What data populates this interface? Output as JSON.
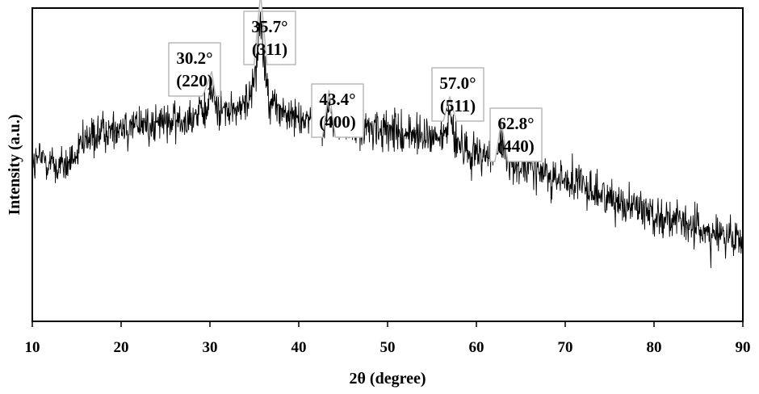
{
  "chart_data": {
    "type": "line",
    "xlabel": "2θ (degree)",
    "ylabel": "Intensity (a.u.)",
    "xlim": [
      10,
      90
    ],
    "ylim": [
      0,
      100
    ],
    "yticks_shown": false,
    "grid": false,
    "xticks": [
      "10",
      "20",
      "30",
      "40",
      "50",
      "60",
      "70",
      "80",
      "90"
    ],
    "series": [
      {
        "values_note_free": true,
        "x": [
          10,
          11,
          12,
          13,
          14,
          15,
          16,
          17,
          18,
          19,
          20,
          21,
          22,
          23,
          24,
          25,
          26,
          27,
          28,
          29,
          29.5,
          30.2,
          31,
          32,
          33,
          34,
          34.8,
          35.3,
          35.7,
          36.1,
          36.6,
          37.5,
          38.5,
          40,
          41.5,
          42.6,
          43.4,
          44.2,
          45.5,
          47,
          48.5,
          50,
          51.5,
          53,
          54.5,
          55.8,
          56.5,
          57.0,
          57.6,
          58.5,
          60,
          61.5,
          62.3,
          62.8,
          63.4,
          64.5,
          66,
          68,
          70,
          72,
          74,
          76,
          78,
          80,
          82,
          84,
          86,
          88,
          90
        ],
        "y": [
          50,
          52,
          51,
          49,
          50,
          53,
          57,
          59,
          60,
          61,
          62,
          62.5,
          62.8,
          63,
          63,
          63.5,
          64,
          64.5,
          65,
          66,
          67,
          73,
          68,
          67,
          67.5,
          69,
          74,
          85,
          98,
          83,
          72,
          68,
          66,
          65,
          64,
          63.5,
          67,
          62.5,
          62,
          61.5,
          61,
          60.5,
          60,
          59.5,
          59,
          58.5,
          60,
          65,
          58,
          55,
          54,
          53,
          54,
          57,
          52,
          50.5,
          49,
          47,
          45,
          43,
          40.5,
          38.5,
          36.5,
          34.5,
          32.5,
          30.5,
          28.5,
          27,
          25
        ]
      }
    ],
    "annotations": [
      {
        "angle": "30.2°",
        "hkl": "(220)",
        "x": 30.2
      },
      {
        "angle": "35.7°",
        "hkl": "(311)",
        "x": 35.7
      },
      {
        "angle": "43.4°",
        "hkl": "(400)",
        "x": 43.4
      },
      {
        "angle": "57.0°",
        "hkl": "(511)",
        "x": 57.0
      },
      {
        "angle": "62.8°",
        "hkl": "(440)",
        "x": 62.8
      }
    ]
  }
}
